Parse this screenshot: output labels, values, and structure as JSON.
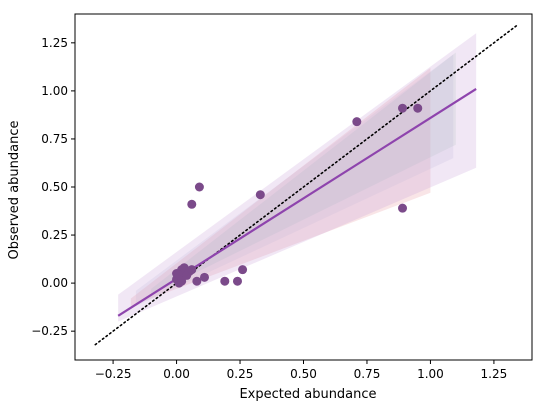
{
  "chart_data": {
    "type": "scatter",
    "title": "",
    "xlabel": "Expected abundance",
    "ylabel": "Observed abundance",
    "xlim": [
      -0.4,
      1.4
    ],
    "ylim": [
      -0.4,
      1.4
    ],
    "x_ticks": [
      -0.25,
      0.0,
      0.25,
      0.5,
      0.75,
      1.0,
      1.25
    ],
    "x_tick_labels": [
      "−0.25",
      "0.00",
      "0.25",
      "0.50",
      "0.75",
      "1.00",
      "1.25"
    ],
    "y_ticks": [
      -0.25,
      0.0,
      0.25,
      0.5,
      0.75,
      1.0,
      1.25
    ],
    "y_tick_labels": [
      "−0.25",
      "0.00",
      "0.25",
      "0.50",
      "0.75",
      "1.00",
      "1.25"
    ],
    "grid": false,
    "legend": "none",
    "points": [
      {
        "x": 0.0,
        "y": 0.02
      },
      {
        "x": 0.01,
        "y": 0.05
      },
      {
        "x": 0.01,
        "y": 0.0
      },
      {
        "x": 0.02,
        "y": 0.07
      },
      {
        "x": 0.02,
        "y": 0.03
      },
      {
        "x": 0.03,
        "y": 0.06
      },
      {
        "x": 0.03,
        "y": 0.08
      },
      {
        "x": 0.04,
        "y": 0.04
      },
      {
        "x": 0.05,
        "y": 0.06
      },
      {
        "x": 0.06,
        "y": 0.07
      },
      {
        "x": 0.0,
        "y": 0.05
      },
      {
        "x": 0.02,
        "y": 0.01
      },
      {
        "x": 0.08,
        "y": 0.01
      },
      {
        "x": 0.11,
        "y": 0.03
      },
      {
        "x": 0.19,
        "y": 0.01
      },
      {
        "x": 0.24,
        "y": 0.01
      },
      {
        "x": 0.26,
        "y": 0.07
      },
      {
        "x": 0.06,
        "y": 0.41
      },
      {
        "x": 0.09,
        "y": 0.5
      },
      {
        "x": 0.33,
        "y": 0.46
      },
      {
        "x": 0.71,
        "y": 0.84
      },
      {
        "x": 0.89,
        "y": 0.91
      },
      {
        "x": 0.95,
        "y": 0.91
      },
      {
        "x": 0.89,
        "y": 0.39
      }
    ],
    "fit_line": {
      "x": [
        -0.23,
        1.18
      ],
      "y": [
        -0.17,
        1.01
      ]
    },
    "identity_line": {
      "x": [
        -0.32,
        1.34
      ],
      "y": [
        -0.32,
        1.34
      ]
    },
    "confidence_bands": [
      {
        "color": "#e8a0a8",
        "opacity": 0.28,
        "x": [
          -0.18,
          1.0
        ],
        "upper": [
          -0.08,
          1.12
        ],
        "lower": [
          -0.12,
          0.47
        ]
      },
      {
        "color": "#a8c8b8",
        "opacity": 0.22,
        "x": [
          -0.1,
          1.1
        ],
        "upper": [
          -0.03,
          1.2
        ],
        "lower": [
          -0.06,
          0.72
        ]
      },
      {
        "color": "#b8b8d8",
        "opacity": 0.2,
        "x": [
          -0.16,
          1.09
        ],
        "upper": [
          -0.04,
          1.19
        ],
        "lower": [
          -0.12,
          0.65
        ]
      },
      {
        "color": "#c8a0d8",
        "opacity": 0.25,
        "x": [
          -0.23,
          1.18
        ],
        "upper": [
          -0.06,
          1.3
        ],
        "lower": [
          -0.2,
          0.6
        ]
      }
    ],
    "colors": {
      "point": "#7b4a8a",
      "fit_line": "#8e44ad",
      "identity_line": "#000000"
    }
  }
}
